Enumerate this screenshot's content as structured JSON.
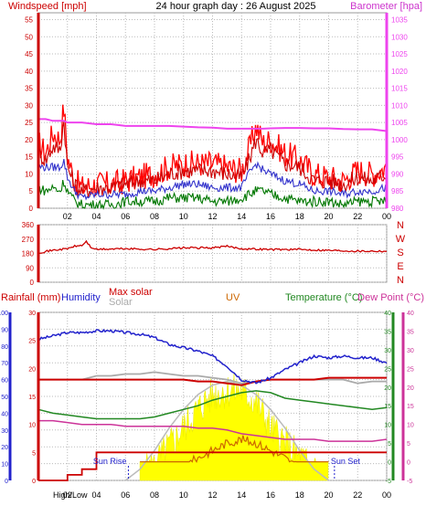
{
  "title": "24 hour graph day : 26 August 2025",
  "colors": {
    "windspeed": "#cc0000",
    "gust": "#ff0000",
    "wind_avg": "#3333cc",
    "wind_low": "#007700",
    "barometer": "#ee44ee",
    "direction": "#cc0000",
    "rain": "#cc0000",
    "humidity": "#2222cc",
    "solar": "#aaaaaa",
    "max_solar": "#bbbbbb",
    "uv": "#cc6600",
    "solar_fill": "#ffff00",
    "temperature": "#228822",
    "dewpoint": "#cc3399",
    "grid": "#bbbbbb",
    "axis_black": "#000000"
  },
  "chart_data": [
    {
      "type": "line",
      "id": "wind_baro",
      "title": "24 hour graph day : 26 August 2025",
      "left_label": "Windspeed [mph]",
      "right_label": "Barometer [hpa]",
      "x_ticks": [
        "02",
        "04",
        "06",
        "08",
        "10",
        "12",
        "14",
        "16",
        "18",
        "20",
        "22",
        "00"
      ],
      "y_left_ticks": [
        "0",
        "5",
        "10",
        "15",
        "20",
        "25",
        "30",
        "35",
        "40",
        "45",
        "50",
        "55"
      ],
      "y_right_ticks": [
        "980",
        "985",
        "990",
        "995",
        "1000",
        "1005",
        "1010",
        "1015",
        "1020",
        "1025",
        "1030",
        "1035"
      ],
      "ylim_left": [
        0,
        57
      ],
      "ylim_right": [
        980,
        1037
      ],
      "x_hours": [
        0,
        0.5,
        1,
        1.5,
        1.75,
        2,
        2.5,
        3,
        4,
        5,
        6,
        7,
        8,
        9,
        10,
        11,
        12,
        13,
        14,
        14.5,
        15,
        15.5,
        16,
        17,
        18,
        19,
        20,
        21,
        22,
        23,
        24
      ],
      "series": [
        {
          "name": "",
          "role": "gust",
          "values": [
            19,
            16,
            22,
            20,
            30,
            15,
            8,
            6,
            7,
            7,
            8,
            9,
            10,
            12,
            13,
            13,
            13,
            12,
            11,
            17,
            24,
            19,
            20,
            16,
            14,
            10,
            9,
            8,
            11,
            10,
            12
          ]
        },
        {
          "name": "",
          "role": "windspeed",
          "values": [
            16,
            14,
            18,
            17,
            26,
            12,
            7,
            5,
            6,
            6,
            7,
            8,
            8,
            10,
            11,
            11,
            11,
            10,
            9,
            14,
            20,
            16,
            17,
            13,
            12,
            8,
            8,
            7,
            9,
            8,
            10
          ]
        },
        {
          "name": "",
          "role": "average",
          "values": [
            12,
            12,
            12,
            12,
            14,
            9,
            5,
            3,
            4,
            4,
            4,
            5,
            5,
            6,
            7,
            7,
            6,
            6,
            6,
            10,
            13,
            11,
            10,
            8,
            7,
            5,
            5,
            4,
            5,
            5,
            6
          ]
        },
        {
          "name": "",
          "role": "low",
          "values": [
            6,
            5,
            6,
            5,
            8,
            5,
            2,
            1,
            1,
            1,
            2,
            2,
            2,
            3,
            3,
            3,
            2,
            2,
            3,
            4,
            5,
            5,
            4,
            3,
            2,
            2,
            2,
            1,
            2,
            2,
            2
          ]
        },
        {
          "name": "",
          "role": "barometer",
          "axis": "right",
          "values": [
            1006,
            1006,
            1005.5,
            1005.5,
            1005.5,
            1005,
            1005,
            1005,
            1004.5,
            1004.5,
            1004,
            1004,
            1004,
            1004,
            1003.8,
            1003.6,
            1003.5,
            1003.2,
            1003.2,
            1003.2,
            1003.2,
            1003.2,
            1003.3,
            1003.4,
            1003.4,
            1003.3,
            1003.3,
            1003.1,
            1003,
            1003,
            1002.5
          ]
        }
      ]
    },
    {
      "type": "line",
      "id": "wind_direction",
      "right_labels": [
        "N",
        "W",
        "S",
        "E",
        "N"
      ],
      "y_ticks": [
        "360",
        "270",
        "180",
        "90",
        "0"
      ],
      "ylim": [
        0,
        360
      ],
      "x_hours": [
        0,
        1,
        2,
        2.5,
        3,
        3.3,
        3.6,
        4,
        6,
        8,
        10,
        12,
        13,
        14,
        16,
        18,
        20,
        22,
        24
      ],
      "series": [
        {
          "name": "",
          "values": [
            185,
            200,
            210,
            225,
            230,
            255,
            220,
            205,
            210,
            205,
            215,
            215,
            225,
            210,
            205,
            205,
            200,
            195,
            195
          ]
        }
      ]
    },
    {
      "type": "line",
      "id": "rain_hum_temp_solar",
      "labels": {
        "rain": "Rainfall (mm)",
        "humidity": "Humidity",
        "max_solar": "Max solar",
        "solar": "Solar",
        "uv": "UV",
        "temperature": "Temperature (°C)",
        "dewpoint": "Dew Point (°C)"
      },
      "sun_rise": "Sun Rise",
      "sun_set": "Sun Set",
      "footer_label": "High/Low",
      "x_ticks": [
        "02",
        "04",
        "06",
        "08",
        "10",
        "12",
        "14",
        "16",
        "18",
        "20",
        "22",
        "00"
      ],
      "y_rain_ticks": [
        "0",
        "5",
        "10",
        "15",
        "20",
        "25",
        "30"
      ],
      "y_hum_ticks": [
        "0",
        "10",
        "20",
        "30",
        "40",
        "50",
        "60",
        "70",
        "80",
        "90",
        "100"
      ],
      "y_temp_ticks": [
        "-5",
        "0",
        "5",
        "10",
        "15",
        "20",
        "25",
        "30",
        "35",
        "40"
      ],
      "ylim_rain": [
        0,
        30
      ],
      "ylim_humidity": [
        0,
        100
      ],
      "ylim_temp": [
        -5,
        40
      ],
      "x_hours": [
        0,
        1,
        2,
        3,
        4,
        5,
        6,
        7,
        8,
        9,
        10,
        11,
        12,
        13,
        14,
        15,
        16,
        17,
        18,
        19,
        20,
        21,
        22,
        23,
        24
      ],
      "humidity": [
        84,
        86,
        88,
        88,
        89,
        89,
        88,
        87,
        85,
        81,
        79,
        77,
        74,
        68,
        60,
        58,
        61,
        66,
        70,
        74,
        73,
        74,
        73,
        73,
        70
      ],
      "temperature": [
        14,
        13,
        12.5,
        12,
        11.5,
        11.5,
        11.5,
        11.5,
        12,
        13,
        14,
        15,
        16.5,
        17.5,
        18.5,
        19,
        18.5,
        17,
        16.5,
        16,
        15.5,
        15,
        14.5,
        14,
        14.5
      ],
      "dewpoint": [
        11,
        11,
        10.5,
        10,
        10,
        10,
        9.5,
        9.5,
        9.5,
        9.5,
        9.5,
        9,
        9,
        8.5,
        7.5,
        7,
        6.5,
        6,
        6,
        6,
        5.5,
        5.5,
        5.5,
        5.5,
        6
      ],
      "rain_rate_temp_axis": [
        22,
        22,
        22,
        22,
        22,
        22,
        22,
        22,
        22,
        22,
        22,
        21.5,
        21.5,
        21,
        20.5,
        21.5,
        22,
        22,
        22,
        22,
        22.5,
        22.5,
        22.5,
        22.5,
        22.5
      ],
      "solar_temp_axis": [
        22,
        22,
        22,
        22,
        23,
        23,
        23.5,
        23.5,
        24,
        23.5,
        23,
        23,
        22.5,
        22,
        21,
        21.5,
        22,
        22,
        22,
        22,
        22,
        22,
        21,
        21.5,
        21.5
      ],
      "max_solar_temp_axis": [
        null,
        null,
        null,
        null,
        null,
        null,
        -5,
        -2,
        3,
        9,
        14,
        18,
        20.5,
        21.5,
        20.5,
        18,
        14,
        9,
        3,
        -2,
        -5,
        null,
        null,
        null,
        null
      ],
      "solar_fill_temp_axis": [
        null,
        null,
        null,
        null,
        null,
        null,
        null,
        -4,
        -1,
        4,
        9,
        14,
        18,
        19,
        19,
        16,
        9,
        5,
        1,
        -2,
        -4,
        null,
        null,
        null,
        null
      ],
      "uv_temp_axis": [
        null,
        null,
        null,
        null,
        null,
        null,
        null,
        -5,
        -4,
        -3,
        -1,
        1,
        3,
        5,
        6,
        5,
        3,
        1,
        -2,
        -4,
        -5,
        null,
        null,
        null,
        null
      ],
      "rain_total_mm": [
        0,
        0,
        1,
        2,
        5,
        5,
        5,
        5,
        5,
        5,
        5,
        5,
        5,
        5,
        5,
        5,
        5,
        5,
        5,
        5,
        5,
        5,
        5,
        5,
        5
      ],
      "sunrise_hour": 6.2,
      "sunset_hour": 20.4
    }
  ]
}
